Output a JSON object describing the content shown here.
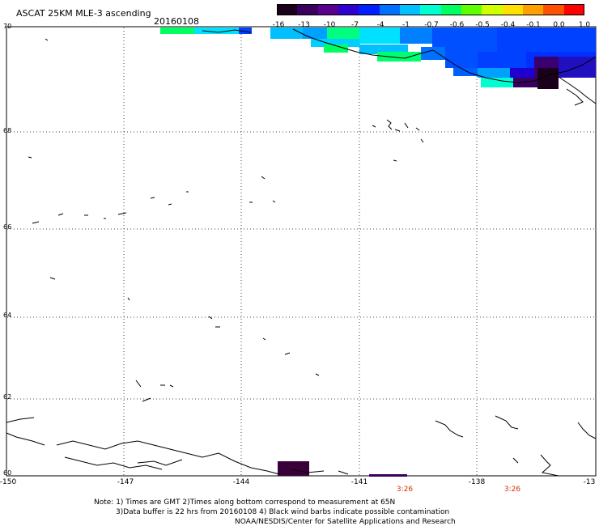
{
  "title": "ASCAT 25KM MLE-3 ascending",
  "date": "20160108",
  "colorbar": {
    "labels": [
      "-16",
      "-13",
      "-10",
      "-7",
      "-4",
      "-1",
      "-0.7",
      "-0.6",
      "-0.5",
      "-0.4",
      "-0.1",
      "0.0",
      "1.0"
    ],
    "colors": [
      "#1a001a",
      "#3a0060",
      "#5a0090",
      "#3000d0",
      "#0020ff",
      "#0070ff",
      "#00c0ff",
      "#00ffd0",
      "#00ff60",
      "#60ff00",
      "#d0ff00",
      "#ffe000",
      "#ffa000",
      "#ff5000",
      "#ff0000"
    ]
  },
  "lat_labels": [
    "70",
    "68",
    "66",
    "64",
    "62",
    "60"
  ],
  "lon_labels": [
    "-150",
    "-147",
    "-144",
    "-141",
    "-138",
    "-13"
  ],
  "time_labels": [
    "3:26",
    "3:26"
  ],
  "notes": [
    "Note: 1) Times are GMT 2)Times along bottom correspond to measurement at 65N",
    "3)Data buffer is 22 hrs from 20160108 4) Black wind barbs indicate possible contamination",
    "NOAA/NESDIS/Center for Satellite Applications and Research"
  ]
}
